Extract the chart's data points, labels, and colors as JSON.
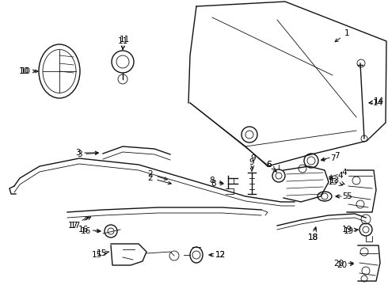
{
  "background_color": "#ffffff",
  "line_color": "#111111",
  "text_color": "#000000",
  "fig_width": 4.9,
  "fig_height": 3.6,
  "dpi": 100
}
